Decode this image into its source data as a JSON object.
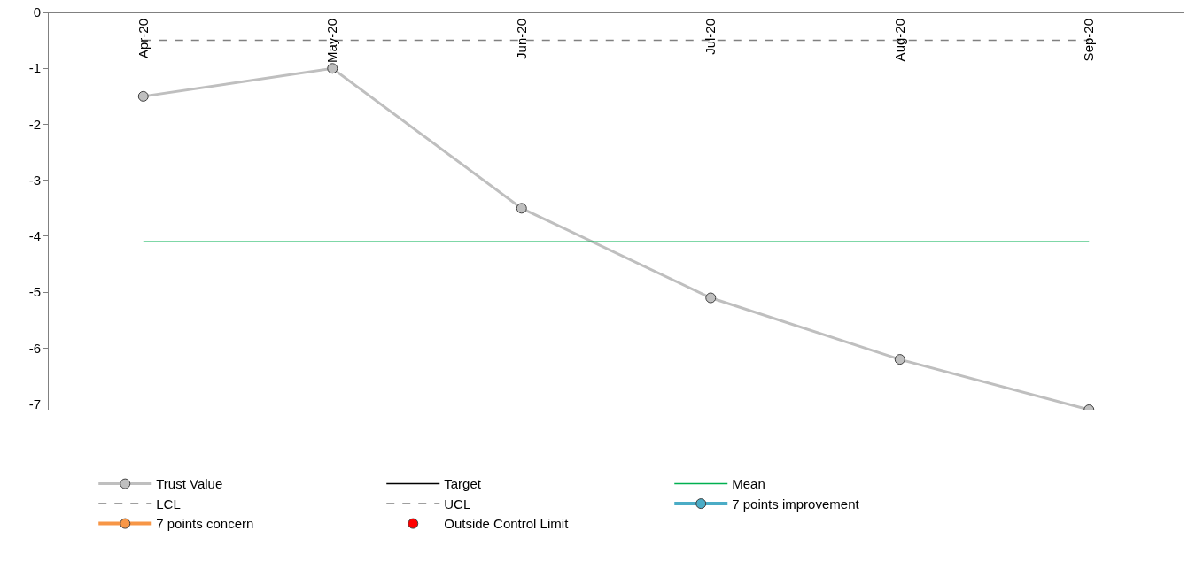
{
  "chart_data": {
    "type": "line",
    "categories": [
      "Apr-20",
      "May-20",
      "Jun-20",
      "Jul-20",
      "Aug-20",
      "Sep-20"
    ],
    "ylim": [
      -7.1,
      0
    ],
    "yticks": [
      0,
      -1,
      -2,
      -3,
      -4,
      -5,
      -6,
      -7
    ],
    "legend": "bottom",
    "series": [
      {
        "name": "Trust Value",
        "color": "#bfbfbf",
        "marker": "circle",
        "line_style": "solid",
        "values": [
          -1.5,
          -1.0,
          -3.5,
          -5.1,
          -6.2,
          -7.1
        ]
      },
      {
        "name": "Target",
        "color": "#000000",
        "marker": "none",
        "line_style": "solid",
        "values": [
          null,
          null,
          null,
          null,
          null,
          null
        ]
      },
      {
        "name": "Mean",
        "color": "#00b050",
        "marker": "none",
        "line_style": "solid",
        "values": [
          -4.1,
          -4.1,
          -4.1,
          -4.1,
          -4.1,
          -4.1
        ]
      },
      {
        "name": "LCL",
        "color": "#808080",
        "marker": "none",
        "line_style": "dashed",
        "values": [
          -0.5,
          -0.5,
          -0.5,
          -0.5,
          -0.5,
          -0.5
        ]
      },
      {
        "name": "UCL",
        "color": "#808080",
        "marker": "none",
        "line_style": "dashed",
        "values": [
          null,
          null,
          null,
          null,
          null,
          null
        ]
      },
      {
        "name": "7 points improvement",
        "color": "#4bacc6",
        "marker": "circle",
        "line_style": "solid",
        "values": [
          null,
          null,
          null,
          null,
          null,
          null
        ]
      },
      {
        "name": "7 points concern",
        "color": "#f79646",
        "marker": "circle",
        "line_style": "solid",
        "values": [
          null,
          null,
          null,
          null,
          null,
          null
        ]
      },
      {
        "name": "Outside Control Limit",
        "type": "scatter",
        "color": "#ff0000",
        "marker": "circle",
        "values": [
          null,
          null,
          null,
          null,
          null,
          null
        ]
      }
    ]
  }
}
